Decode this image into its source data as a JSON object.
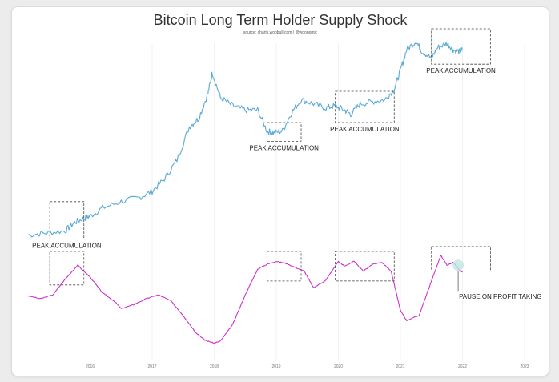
{
  "header": {
    "title": "Bitcoin Long Term Holder Supply Shock",
    "source": "source: charts.woobull.com / @woonomic"
  },
  "colors": {
    "price": "#5aa9d6",
    "supply_shock": "#cc33cc",
    "box": "#444444",
    "highlight": "#bfe6e3"
  },
  "chart_data": {
    "type": "line",
    "title": "Bitcoin Long Term Holder Supply Shock",
    "xlabel": "",
    "ylabel": "",
    "x_ticks": [
      "2016",
      "2017",
      "2018",
      "2019",
      "2020",
      "2021",
      "2022",
      "2023"
    ],
    "xlim": [
      2015.0,
      2023.0
    ],
    "grid": "vertical year lines",
    "series": [
      {
        "key": "price",
        "x": [
          2015.0,
          2015.3,
          2015.6,
          2015.75,
          2015.9,
          2016.0,
          2016.2,
          2016.5,
          2016.8,
          2017.0,
          2017.2,
          2017.4,
          2017.6,
          2017.75,
          2017.9,
          2017.97,
          2018.1,
          2018.3,
          2018.5,
          2018.7,
          2018.85,
          2018.95,
          2019.1,
          2019.25,
          2019.4,
          2019.6,
          2019.8,
          2019.95,
          2020.1,
          2020.2,
          2020.35,
          2020.55,
          2020.75,
          2020.9,
          2021.0,
          2021.1,
          2021.25,
          2021.35,
          2021.5,
          2021.6,
          2021.75,
          2021.85,
          2021.95,
          2022.0
        ],
        "y": [
          0.06,
          0.07,
          0.08,
          0.12,
          0.14,
          0.15,
          0.19,
          0.22,
          0.24,
          0.27,
          0.33,
          0.42,
          0.58,
          0.62,
          0.74,
          0.84,
          0.72,
          0.68,
          0.66,
          0.66,
          0.56,
          0.55,
          0.56,
          0.65,
          0.71,
          0.69,
          0.67,
          0.68,
          0.66,
          0.64,
          0.69,
          0.7,
          0.71,
          0.76,
          0.85,
          0.95,
          0.99,
          0.94,
          0.91,
          0.96,
          0.98,
          0.95,
          0.94,
          0.95
        ]
      },
      {
        "key": "supply_shock",
        "x": [
          2015.0,
          2015.2,
          2015.4,
          2015.6,
          2015.8,
          2016.0,
          2016.2,
          2016.4,
          2016.5,
          2016.7,
          2016.9,
          2017.1,
          2017.3,
          2017.5,
          2017.7,
          2017.85,
          2018.0,
          2018.1,
          2018.3,
          2018.5,
          2018.7,
          2018.85,
          2019.0,
          2019.15,
          2019.3,
          2019.45,
          2019.6,
          2019.8,
          2020.0,
          2020.1,
          2020.25,
          2020.4,
          2020.55,
          2020.7,
          2020.85,
          2021.0,
          2021.1,
          2021.3,
          2021.5,
          2021.65,
          2021.75,
          2021.85,
          2021.95,
          2022.0
        ],
        "y": [
          0.55,
          0.52,
          0.56,
          0.72,
          0.86,
          0.74,
          0.58,
          0.49,
          0.42,
          0.46,
          0.52,
          0.56,
          0.5,
          0.35,
          0.18,
          0.1,
          0.07,
          0.09,
          0.26,
          0.56,
          0.82,
          0.87,
          0.9,
          0.88,
          0.84,
          0.8,
          0.63,
          0.71,
          0.9,
          0.85,
          0.9,
          0.8,
          0.87,
          0.89,
          0.8,
          0.4,
          0.3,
          0.35,
          0.7,
          0.96,
          0.86,
          0.89,
          0.81,
          0.79
        ]
      }
    ],
    "annotations": [
      {
        "label": "PEAK ACCUMULATION",
        "panel": "price",
        "x0": 2015.35,
        "x1": 2015.9,
        "y0": 0.04,
        "y1": 0.22
      },
      {
        "label": "PEAK ACCUMULATION",
        "panel": "price",
        "x0": 2018.85,
        "x1": 2019.4,
        "y0": 0.51,
        "y1": 0.6
      },
      {
        "label": "PEAK ACCUMULATION",
        "panel": "price",
        "x0": 2019.95,
        "x1": 2020.9,
        "y0": 0.6,
        "y1": 0.75
      },
      {
        "label": "PEAK ACCUMULATION",
        "panel": "price",
        "x0": 2021.5,
        "x1": 2022.45,
        "y0": 0.88,
        "y1": 1.05
      },
      {
        "label": "",
        "panel": "supply_shock",
        "x0": 2015.35,
        "x1": 2015.9,
        "y0": 0.66,
        "y1": 1.0
      },
      {
        "label": "",
        "panel": "supply_shock",
        "x0": 2018.85,
        "x1": 2019.4,
        "y0": 0.7,
        "y1": 1.0
      },
      {
        "label": "",
        "panel": "supply_shock",
        "x0": 2019.95,
        "x1": 2020.9,
        "y0": 0.7,
        "y1": 1.0
      },
      {
        "label": "",
        "panel": "supply_shock",
        "x0": 2021.5,
        "x1": 2022.45,
        "y0": 0.8,
        "y1": 1.05
      },
      {
        "label": "PAUSE ON PROFIT TAKING",
        "panel": "supply_shock",
        "x": 2021.93,
        "y": 0.86
      }
    ]
  }
}
